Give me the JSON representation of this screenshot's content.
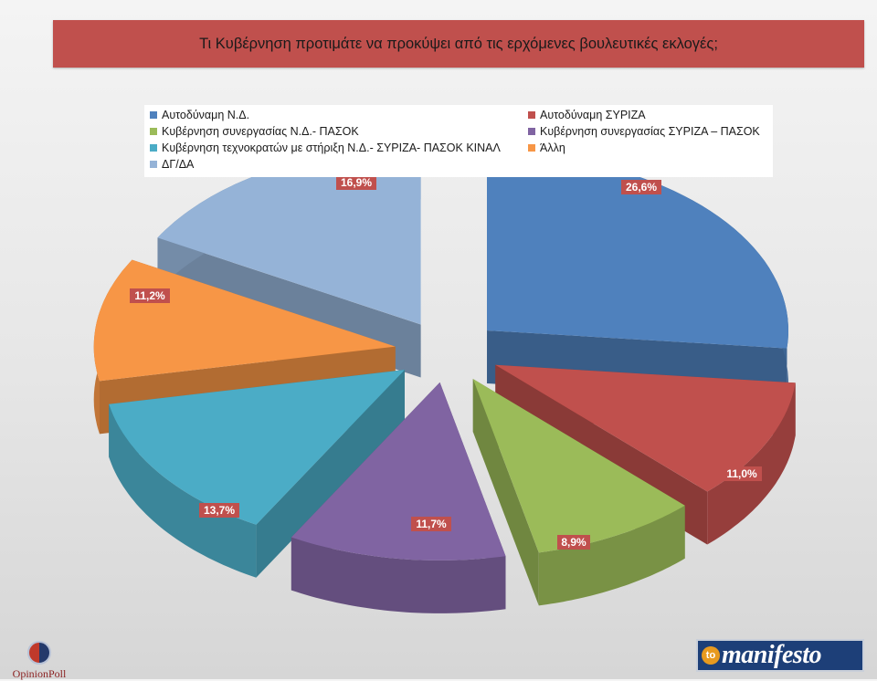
{
  "title": "Τι Κυβέρνηση προτιμάτε να προκύψει από τις ερχόμενες βουλευτικές εκλογές;",
  "chart_data": {
    "type": "pie",
    "title": "Τι Κυβέρνηση προτιμάτε να προκύψει από τις ερχόμενες βουλευτικές εκλογές;",
    "legend_position": "top",
    "slices": [
      {
        "name": "Αυτοδύναμη Ν.Δ.",
        "value": 26.6,
        "label": "26,6%",
        "color": "#4f81bd"
      },
      {
        "name": "Αυτοδύναμη ΣΥΡΙΖΑ",
        "value": 11.0,
        "label": "11,0%",
        "color": "#c0504d"
      },
      {
        "name": "Κυβέρνηση συνεργασίας Ν.Δ.- ΠΑΣΟΚ",
        "value": 8.9,
        "label": "8,9%",
        "color": "#9bbb59"
      },
      {
        "name": "Κυβέρνηση συνεργασίας ΣΥΡΙΖΑ – ΠΑΣΟΚ",
        "value": 11.7,
        "label": "11,7%",
        "color": "#8064a2"
      },
      {
        "name": "Κυβέρνηση τεχνοκρατών με στήριξη Ν.Δ.- ΣΥΡΙΖΑ- ΠΑΣΟΚ ΚΙΝΑΛ",
        "value": 13.7,
        "label": "13,7%",
        "color": "#4bacc6"
      },
      {
        "name": "Άλλη",
        "value": 11.2,
        "label": "11,2%",
        "color": "#f79646"
      },
      {
        "name": "ΔΓ/ΔΑ",
        "value": 16.9,
        "label": "16,9%",
        "color": "#95b3d7"
      }
    ]
  },
  "branding": {
    "left_logo_text": "OpinionPoll",
    "right_logo_badge": "to",
    "right_logo_word": "manifesto"
  }
}
